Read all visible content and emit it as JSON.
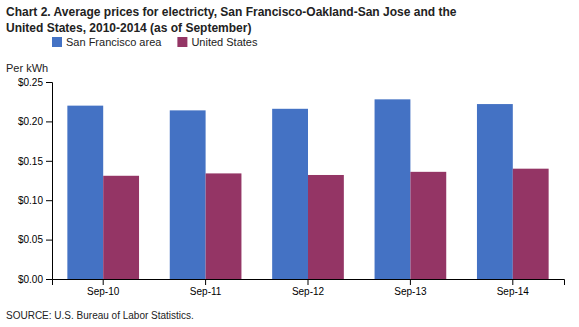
{
  "chart_data": {
    "type": "bar",
    "title": "Chart 2. Average prices for electricty, San Francisco-Oakland-San Jose and the\nUnited States, 2010-2014 (as of September)",
    "ylabel": "Per kWh",
    "annotations": [
      "SOURCE: U.S. Bureau of Labor Statistics."
    ],
    "categories": [
      "Sep-10",
      "Sep-11",
      "Sep-12",
      "Sep-13",
      "Sep-14"
    ],
    "series": [
      {
        "name": "San Francisco area",
        "color": "#4472C4",
        "values": [
          0.22,
          0.214,
          0.216,
          0.228,
          0.222
        ]
      },
      {
        "name": "United States",
        "color": "#943565",
        "values": [
          0.131,
          0.134,
          0.132,
          0.136,
          0.14
        ]
      }
    ],
    "ylim": [
      0.0,
      0.25
    ],
    "yticks": [
      {
        "value": 0.0,
        "label": "$0.00"
      },
      {
        "value": 0.05,
        "label": "$0.05"
      },
      {
        "value": 0.1,
        "label": "$0.10"
      },
      {
        "value": 0.15,
        "label": "$0.15"
      },
      {
        "value": 0.2,
        "label": "$0.20"
      },
      {
        "value": 0.25,
        "label": "$0.25"
      }
    ],
    "grid": false,
    "legend": "upper left"
  }
}
